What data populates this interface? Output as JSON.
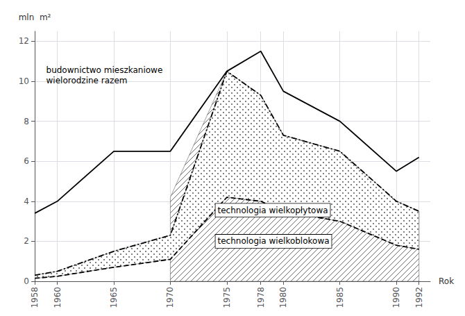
{
  "chart_data": {
    "type": "line",
    "xlabel": "Rok",
    "ylabel": "mln  m²",
    "xlim": [
      1958,
      1993
    ],
    "ylim": [
      0,
      12.5
    ],
    "xticks": [
      1958,
      1960,
      1965,
      1970,
      1975,
      1978,
      1980,
      1985,
      1990,
      1992
    ],
    "yticks": [
      0,
      2,
      4,
      6,
      8,
      10,
      12
    ],
    "grid": true,
    "x": [
      1958,
      1960,
      1965,
      1970,
      1975,
      1978,
      1980,
      1985,
      1990,
      1992
    ],
    "series": [
      {
        "type": "area",
        "color": "#444444",
        "x": [
          1970,
          1975,
          1978,
          1980,
          1985,
          1990,
          1992
        ],
        "values": [
          4.2,
          10.5,
          9.3,
          7.3,
          6.5,
          4.0,
          3.5
        ]
      },
      {
        "type": "band",
        "color": "#444444",
        "values": [
          0.3,
          0.5,
          1.5,
          2.3,
          10.5,
          9.3,
          7.3,
          6.5,
          4.0,
          3.5
        ],
        "lower": [
          0.15,
          0.25,
          0.7,
          1.1,
          4.2,
          4.0,
          3.5,
          3.0,
          1.8,
          1.6
        ]
      },
      {
        "type": "line",
        "line_style": "solid",
        "color": "#000000",
        "values": [
          3.4,
          4.0,
          6.5,
          6.5,
          10.5,
          11.5,
          9.5,
          8.0,
          5.5,
          6.2
        ]
      },
      {
        "type": "line",
        "line_style": "dashdot",
        "color": "#000000",
        "values": [
          0.3,
          0.5,
          1.5,
          2.3,
          10.5,
          9.3,
          7.3,
          6.5,
          4.0,
          3.5
        ]
      },
      {
        "type": "line",
        "line_style": "dashed",
        "color": "#000000",
        "values": [
          0.15,
          0.25,
          0.7,
          1.1,
          4.2,
          4.0,
          3.5,
          3.0,
          1.8,
          1.6
        ]
      }
    ],
    "annotations": [
      "budownictwo mieszkaniowe\nwielorodzine razem",
      "technologia wielkopłytowa",
      "technologia wielkoblokowa"
    ]
  }
}
